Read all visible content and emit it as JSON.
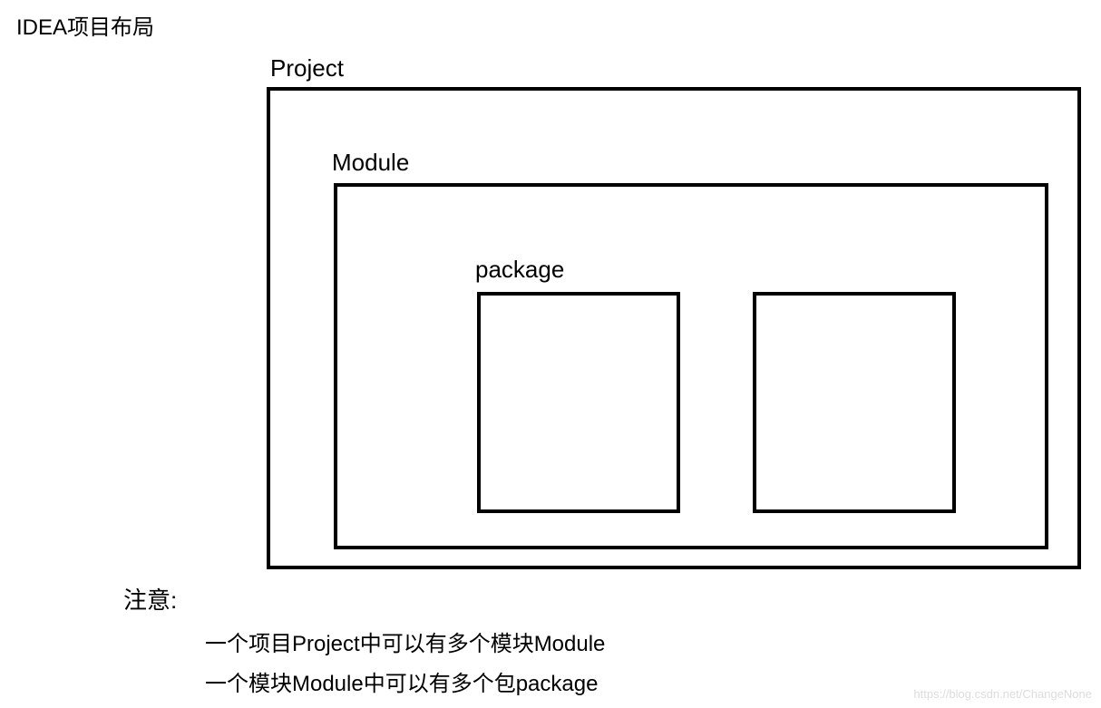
{
  "title": "IDEA项目布局",
  "diagram": {
    "project": {
      "label": "Project",
      "border_color": "#000000",
      "border_width": 4,
      "background_color": "#ffffff"
    },
    "module": {
      "label": "Module",
      "border_color": "#000000",
      "border_width": 4,
      "background_color": "#ffffff"
    },
    "package": {
      "label": "package",
      "border_color": "#000000",
      "border_width": 4,
      "background_color": "#ffffff",
      "count": 2
    }
  },
  "notes": {
    "label": "注意:",
    "line1": "一个项目Project中可以有多个模块Module",
    "line2": "一个模块Module中可以有多个包package"
  },
  "watermark": "https://blog.csdn.net/ChangeNone",
  "colors": {
    "text": "#000000",
    "background": "#ffffff",
    "border": "#000000",
    "watermark": "#dcdcdc"
  },
  "typography": {
    "title_fontsize": 24,
    "label_fontsize": 26,
    "note_fontsize": 24,
    "font_family": "Microsoft YaHei"
  }
}
